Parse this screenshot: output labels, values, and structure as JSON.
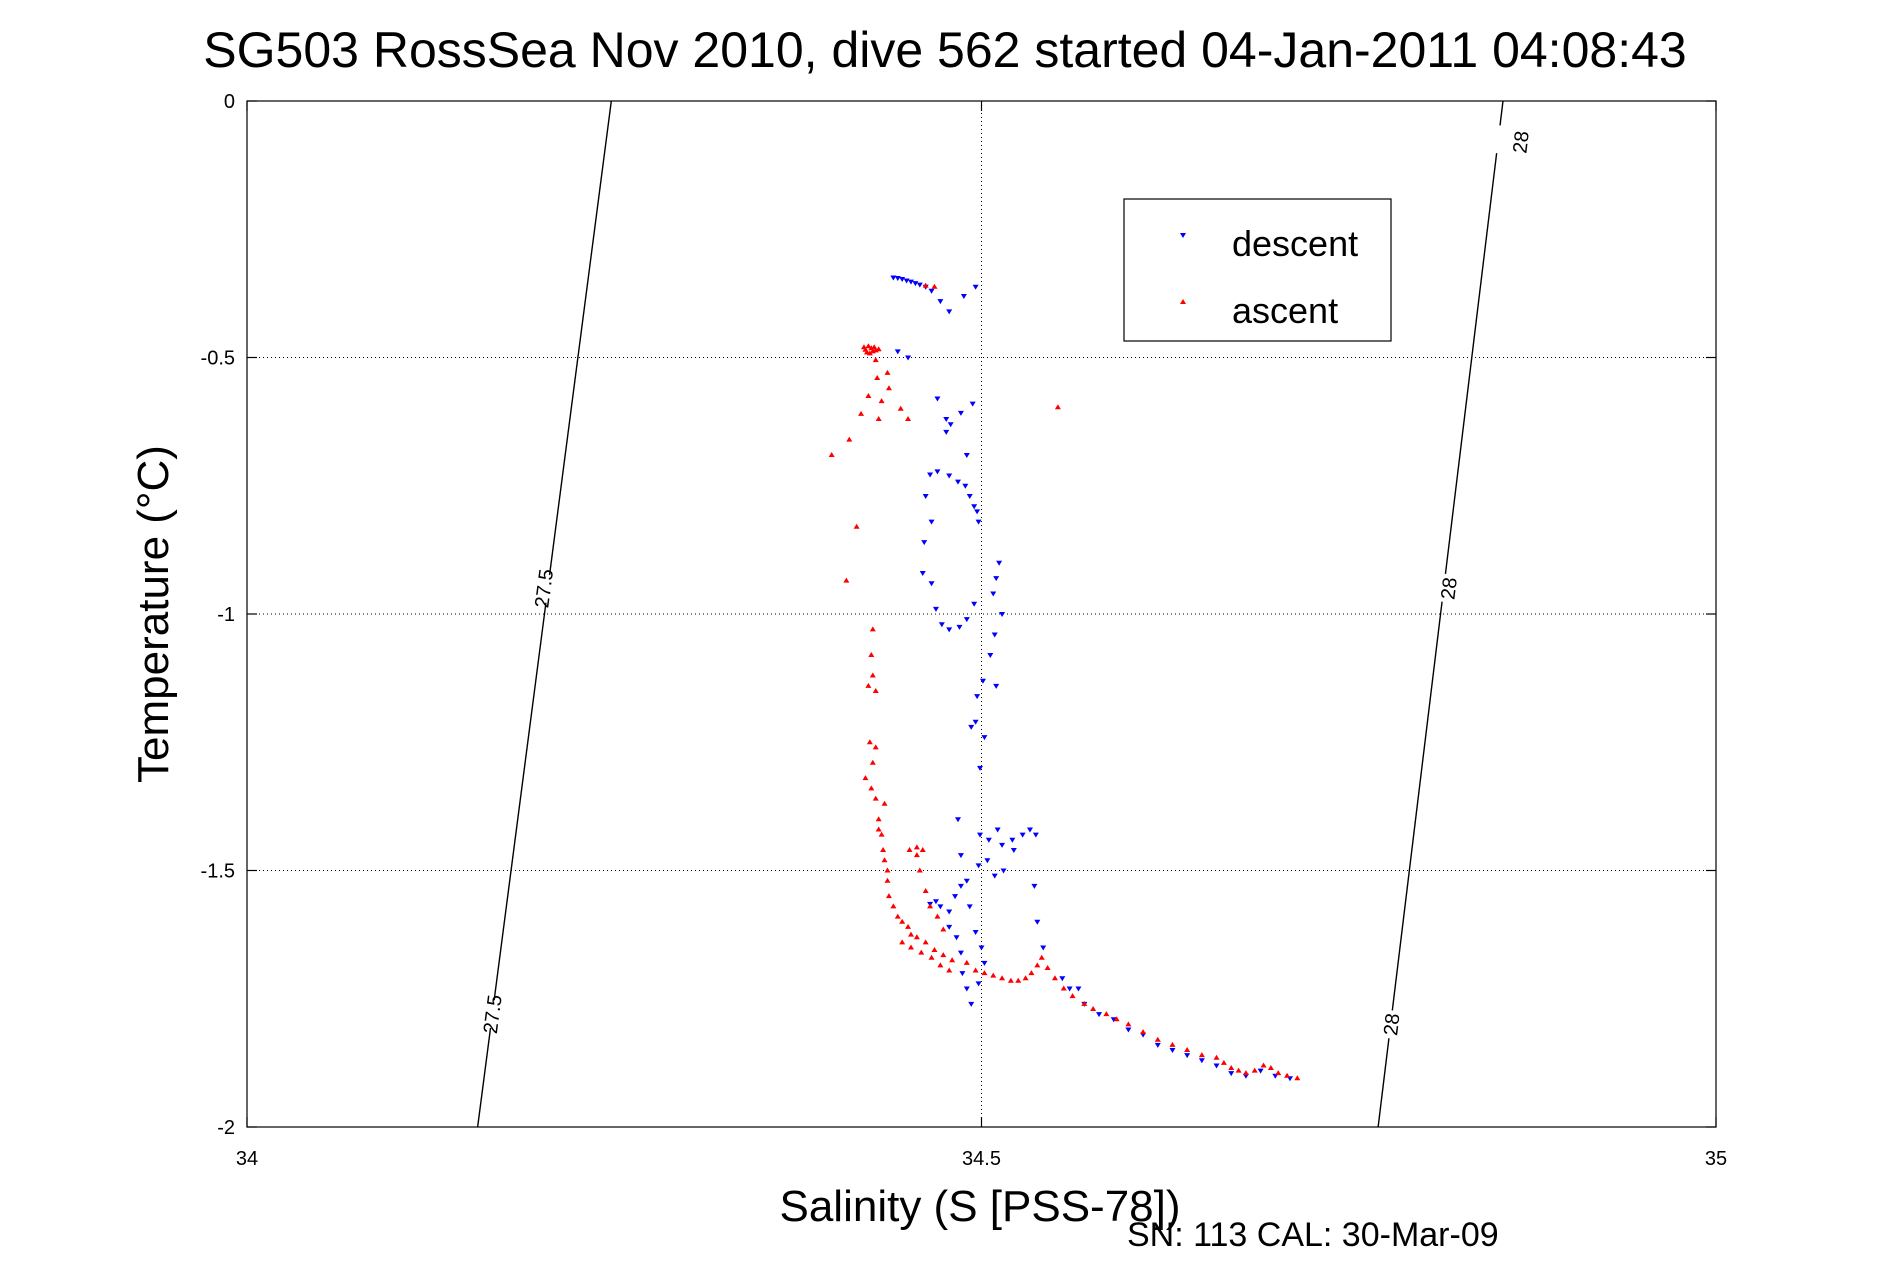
{
  "title": "SG503 RossSea Nov 2010, dive 562 started 04-Jan-2011 04:08:43",
  "footer": "SN: 113  CAL: 30-Mar-09",
  "chart_data": {
    "type": "scatter",
    "title": "SG503 RossSea Nov 2010, dive 562 started 04-Jan-2011 04:08:43",
    "xlabel": "Salinity (S [PSS-78])",
    "ylabel": "Temperature (°C)",
    "xlim": [
      34,
      35
    ],
    "ylim": [
      -2,
      0
    ],
    "xticks": [
      34,
      34.5,
      35
    ],
    "xtick_labels": [
      "34",
      "34.5",
      "35"
    ],
    "yticks": [
      0,
      -0.5,
      -1,
      -1.5,
      -2
    ],
    "ytick_labels": [
      "0",
      "-0.5",
      "-1",
      "-1.5",
      "-2"
    ],
    "grid": true,
    "legend_position": "top-right",
    "colors": {
      "descent": "#0000ff",
      "ascent": "#ff0000",
      "contour": "#000000"
    },
    "contours": [
      {
        "level": "27.5",
        "points": [
          [
            34.248,
            0
          ],
          [
            34.157,
            -2
          ]
        ],
        "labels": [
          {
            "text": "27.5",
            "x": 34.202,
            "y": -0.95
          },
          {
            "text": "27.5",
            "x": 34.167,
            "y": -1.78
          }
        ]
      },
      {
        "level": "28",
        "points": [
          [
            34.855,
            0
          ],
          [
            34.77,
            -2
          ]
        ],
        "labels": [
          {
            "text": "28",
            "x": 34.867,
            "y": -0.08
          },
          {
            "text": "28",
            "x": 34.818,
            "y": -0.95
          },
          {
            "text": "28",
            "x": 34.779,
            "y": -1.8
          }
        ]
      }
    ],
    "series": [
      {
        "name": "descent",
        "marker": "triangle-down",
        "points": [
          [
            34.44,
            -0.344
          ],
          [
            34.443,
            -0.345
          ],
          [
            34.446,
            -0.347
          ],
          [
            34.449,
            -0.35
          ],
          [
            34.452,
            -0.352
          ],
          [
            34.455,
            -0.355
          ],
          [
            34.458,
            -0.358
          ],
          [
            34.462,
            -0.362
          ],
          [
            34.466,
            -0.37
          ],
          [
            34.472,
            -0.39
          ],
          [
            34.478,
            -0.41
          ],
          [
            34.488,
            -0.38
          ],
          [
            34.496,
            -0.362
          ],
          [
            34.443,
            -0.488
          ],
          [
            34.45,
            -0.5
          ],
          [
            34.47,
            -0.58
          ],
          [
            34.476,
            -0.62
          ],
          [
            34.479,
            -0.63
          ],
          [
            34.486,
            -0.608
          ],
          [
            34.494,
            -0.59
          ],
          [
            34.476,
            -0.645
          ],
          [
            34.49,
            -0.69
          ],
          [
            34.465,
            -0.728
          ],
          [
            34.47,
            -0.722
          ],
          [
            34.478,
            -0.73
          ],
          [
            34.484,
            -0.742
          ],
          [
            34.489,
            -0.75
          ],
          [
            34.492,
            -0.77
          ],
          [
            34.495,
            -0.79
          ],
          [
            34.497,
            -0.8
          ],
          [
            34.498,
            -0.82
          ],
          [
            34.462,
            -0.77
          ],
          [
            34.466,
            -0.82
          ],
          [
            34.461,
            -0.86
          ],
          [
            34.46,
            -0.92
          ],
          [
            34.466,
            -0.94
          ],
          [
            34.512,
            -0.9
          ],
          [
            34.51,
            -0.93
          ],
          [
            34.508,
            -0.96
          ],
          [
            34.469,
            -0.99
          ],
          [
            34.473,
            -1.02
          ],
          [
            34.478,
            -1.03
          ],
          [
            34.485,
            -1.025
          ],
          [
            34.49,
            -1.01
          ],
          [
            34.495,
            -0.98
          ],
          [
            34.514,
            -1.0
          ],
          [
            34.509,
            -1.04
          ],
          [
            34.506,
            -1.08
          ],
          [
            34.501,
            -1.13
          ],
          [
            34.497,
            -1.16
          ],
          [
            34.493,
            -1.22
          ],
          [
            34.496,
            -1.21
          ],
          [
            34.51,
            -1.14
          ],
          [
            34.502,
            -1.24
          ],
          [
            34.499,
            -1.3
          ],
          [
            34.484,
            -1.4
          ],
          [
            34.499,
            -1.43
          ],
          [
            34.505,
            -1.44
          ],
          [
            34.511,
            -1.42
          ],
          [
            34.514,
            -1.45
          ],
          [
            34.521,
            -1.44
          ],
          [
            34.528,
            -1.43
          ],
          [
            34.533,
            -1.42
          ],
          [
            34.537,
            -1.43
          ],
          [
            34.486,
            -1.47
          ],
          [
            34.498,
            -1.49
          ],
          [
            34.504,
            -1.48
          ],
          [
            34.509,
            -1.51
          ],
          [
            34.515,
            -1.5
          ],
          [
            34.522,
            -1.46
          ],
          [
            34.465,
            -1.565
          ],
          [
            34.469,
            -1.56
          ],
          [
            34.472,
            -1.57
          ],
          [
            34.478,
            -1.58
          ],
          [
            34.482,
            -1.55
          ],
          [
            34.486,
            -1.53
          ],
          [
            34.49,
            -1.52
          ],
          [
            34.492,
            -1.57
          ],
          [
            34.496,
            -1.62
          ],
          [
            34.478,
            -1.61
          ],
          [
            34.483,
            -1.63
          ],
          [
            34.486,
            -1.66
          ],
          [
            34.487,
            -1.7
          ],
          [
            34.49,
            -1.73
          ],
          [
            34.493,
            -1.76
          ],
          [
            34.498,
            -1.72
          ],
          [
            34.502,
            -1.68
          ],
          [
            34.5,
            -1.65
          ],
          [
            34.536,
            -1.53
          ],
          [
            34.538,
            -1.6
          ],
          [
            34.542,
            -1.65
          ],
          [
            34.555,
            -1.71
          ],
          [
            34.56,
            -1.73
          ],
          [
            34.566,
            -1.73
          ],
          [
            34.57,
            -1.76
          ],
          [
            34.58,
            -1.78
          ],
          [
            34.59,
            -1.79
          ],
          [
            34.6,
            -1.81
          ],
          [
            34.61,
            -1.82
          ],
          [
            34.62,
            -1.84
          ],
          [
            34.63,
            -1.85
          ],
          [
            34.64,
            -1.86
          ],
          [
            34.65,
            -1.87
          ],
          [
            34.66,
            -1.88
          ],
          [
            34.67,
            -1.895
          ],
          [
            34.68,
            -1.9
          ],
          [
            34.69,
            -1.89
          ],
          [
            34.7,
            -1.9
          ],
          [
            34.71,
            -1.905
          ]
        ]
      },
      {
        "name": "ascent",
        "marker": "triangle-up",
        "points": [
          [
            34.462,
            -0.36
          ],
          [
            34.468,
            -0.362
          ],
          [
            34.42,
            -0.48
          ],
          [
            34.421,
            -0.485
          ],
          [
            34.422,
            -0.49
          ],
          [
            34.423,
            -0.478
          ],
          [
            34.424,
            -0.492
          ],
          [
            34.425,
            -0.482
          ],
          [
            34.426,
            -0.488
          ],
          [
            34.427,
            -0.48
          ],
          [
            34.428,
            -0.486
          ],
          [
            34.43,
            -0.484
          ],
          [
            34.428,
            -0.505
          ],
          [
            34.436,
            -0.53
          ],
          [
            34.429,
            -0.54
          ],
          [
            34.437,
            -0.56
          ],
          [
            34.423,
            -0.575
          ],
          [
            34.432,
            -0.585
          ],
          [
            34.418,
            -0.61
          ],
          [
            34.43,
            -0.62
          ],
          [
            34.41,
            -0.66
          ],
          [
            34.398,
            -0.69
          ],
          [
            34.445,
            -0.6
          ],
          [
            34.45,
            -0.62
          ],
          [
            34.552,
            -0.597
          ],
          [
            34.415,
            -0.83
          ],
          [
            34.408,
            -0.935
          ],
          [
            34.426,
            -1.03
          ],
          [
            34.425,
            -1.08
          ],
          [
            34.426,
            -1.12
          ],
          [
            34.423,
            -1.14
          ],
          [
            34.428,
            -1.15
          ],
          [
            34.424,
            -1.25
          ],
          [
            34.428,
            -1.26
          ],
          [
            34.426,
            -1.29
          ],
          [
            34.421,
            -1.32
          ],
          [
            34.425,
            -1.34
          ],
          [
            34.428,
            -1.36
          ],
          [
            34.434,
            -1.37
          ],
          [
            34.43,
            -1.4
          ],
          [
            34.43,
            -1.42
          ],
          [
            34.432,
            -1.43
          ],
          [
            34.433,
            -1.46
          ],
          [
            34.434,
            -1.48
          ],
          [
            34.436,
            -1.5
          ],
          [
            34.436,
            -1.52
          ],
          [
            34.437,
            -1.55
          ],
          [
            34.44,
            -1.57
          ],
          [
            34.443,
            -1.59
          ],
          [
            34.446,
            -1.6
          ],
          [
            34.45,
            -1.61
          ],
          [
            34.452,
            -1.625
          ],
          [
            34.456,
            -1.63
          ],
          [
            34.462,
            -1.64
          ],
          [
            34.468,
            -1.655
          ],
          [
            34.474,
            -1.665
          ],
          [
            34.48,
            -1.675
          ],
          [
            34.451,
            -1.46
          ],
          [
            34.456,
            -1.455
          ],
          [
            34.46,
            -1.46
          ],
          [
            34.456,
            -1.47
          ],
          [
            34.458,
            -1.5
          ],
          [
            34.462,
            -1.54
          ],
          [
            34.465,
            -1.57
          ],
          [
            34.47,
            -1.59
          ],
          [
            34.474,
            -1.615
          ],
          [
            34.446,
            -1.64
          ],
          [
            34.452,
            -1.65
          ],
          [
            34.459,
            -1.66
          ],
          [
            34.466,
            -1.67
          ],
          [
            34.472,
            -1.685
          ],
          [
            34.478,
            -1.695
          ],
          [
            34.49,
            -1.68
          ],
          [
            34.496,
            -1.695
          ],
          [
            34.502,
            -1.7
          ],
          [
            34.508,
            -1.705
          ],
          [
            34.514,
            -1.71
          ],
          [
            34.52,
            -1.715
          ],
          [
            34.525,
            -1.715
          ],
          [
            34.53,
            -1.71
          ],
          [
            34.534,
            -1.7
          ],
          [
            34.538,
            -1.685
          ],
          [
            34.541,
            -1.67
          ],
          [
            34.545,
            -1.69
          ],
          [
            34.55,
            -1.71
          ],
          [
            34.556,
            -1.73
          ],
          [
            34.562,
            -1.745
          ],
          [
            34.57,
            -1.76
          ],
          [
            34.576,
            -1.77
          ],
          [
            34.585,
            -1.78
          ],
          [
            34.592,
            -1.79
          ],
          [
            34.6,
            -1.8
          ],
          [
            34.61,
            -1.815
          ],
          [
            34.62,
            -1.83
          ],
          [
            34.63,
            -1.84
          ],
          [
            34.64,
            -1.85
          ],
          [
            34.65,
            -1.86
          ],
          [
            34.66,
            -1.865
          ],
          [
            34.665,
            -1.875
          ],
          [
            34.67,
            -1.885
          ],
          [
            34.675,
            -1.89
          ],
          [
            34.68,
            -1.895
          ],
          [
            34.686,
            -1.89
          ],
          [
            34.692,
            -1.88
          ],
          [
            34.697,
            -1.885
          ],
          [
            34.702,
            -1.895
          ],
          [
            34.708,
            -1.9
          ],
          [
            34.715,
            -1.905
          ]
        ]
      }
    ]
  }
}
